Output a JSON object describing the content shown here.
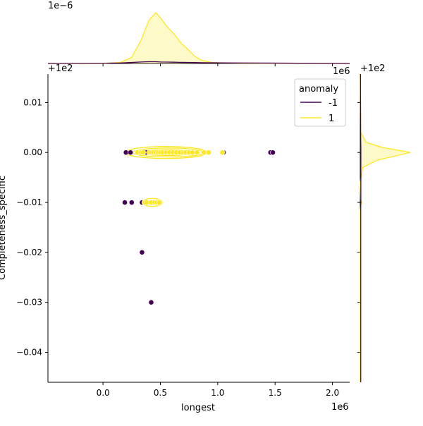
{
  "chart_data": {
    "type": "scatter",
    "subtype": "jointplot-kde",
    "xlabel": "longest",
    "ylabel": "Completeness_specific",
    "x_scale_label": "1e6",
    "y_offset_label": "+1e2",
    "top_marginal_scale_label": "1e−6",
    "top_marginal_top_right_label": "1e6",
    "right_marginal_offset_label": "+1e2",
    "xlim": [
      -0.48,
      2.15
    ],
    "ylim": [
      -0.046,
      0.0157
    ],
    "x_ticks": [
      0.0,
      0.5,
      1.0,
      1.5,
      2.0
    ],
    "x_tick_labels": [
      "0.0",
      "0.5",
      "1.0",
      "1.5",
      "2.0"
    ],
    "y_ticks": [
      0.01,
      0.0,
      -0.01,
      -0.02,
      -0.03,
      -0.04
    ],
    "y_tick_labels": [
      "0.01",
      "0.00",
      "−0.01",
      "−0.02",
      "−0.03",
      "−0.04"
    ],
    "grid": false,
    "legend": {
      "title": "anomaly",
      "placement": "top-right"
    },
    "series": [
      {
        "name": "-1",
        "color": "#440154",
        "points": [
          [
            0.2,
            0.0
          ],
          [
            0.24,
            0.0
          ],
          [
            0.38,
            0.0
          ],
          [
            1.05,
            0.0
          ],
          [
            1.46,
            0.0
          ],
          [
            1.48,
            0.0
          ],
          [
            0.19,
            -0.01
          ],
          [
            0.25,
            -0.01
          ],
          [
            0.34,
            -0.01
          ],
          [
            0.34,
            -0.02
          ],
          [
            0.42,
            -0.03
          ]
        ]
      },
      {
        "name": "1",
        "color": "#fde725",
        "points": [
          [
            0.3,
            0.0
          ],
          [
            0.33,
            0.0
          ],
          [
            0.35,
            0.0
          ],
          [
            0.4,
            0.0
          ],
          [
            0.42,
            0.0
          ],
          [
            0.44,
            0.0
          ],
          [
            0.46,
            0.0
          ],
          [
            0.48,
            0.0
          ],
          [
            0.5,
            0.0
          ],
          [
            0.52,
            0.0
          ],
          [
            0.55,
            0.0
          ],
          [
            0.58,
            0.0
          ],
          [
            0.61,
            0.0
          ],
          [
            0.64,
            0.0
          ],
          [
            0.67,
            0.0
          ],
          [
            0.7,
            0.0
          ],
          [
            0.72,
            0.0
          ],
          [
            0.75,
            0.0
          ],
          [
            0.78,
            0.0
          ],
          [
            0.82,
            0.0
          ],
          [
            0.88,
            0.0
          ],
          [
            0.92,
            0.0
          ],
          [
            1.04,
            0.0
          ],
          [
            0.36,
            -0.01
          ],
          [
            0.38,
            -0.01
          ],
          [
            0.42,
            -0.01
          ],
          [
            0.45,
            -0.01
          ],
          [
            0.47,
            -0.01
          ],
          [
            0.49,
            -0.01
          ]
        ]
      }
    ],
    "kde_contours_yellow": [
      {
        "cx": 0.55,
        "cy": 0.0,
        "rx": 0.36,
        "ry": 0.0012
      },
      {
        "cx": 0.57,
        "cy": 0.0,
        "rx": 0.31,
        "ry": 0.0009
      },
      {
        "cx": 0.55,
        "cy": 0.0,
        "rx": 0.24,
        "ry": 0.0006
      },
      {
        "cx": 0.52,
        "cy": 0.0,
        "rx": 0.17,
        "ry": 0.0004
      },
      {
        "cx": 0.43,
        "cy": -0.01,
        "rx": 0.085,
        "ry": 0.0008
      },
      {
        "cx": 0.43,
        "cy": -0.01,
        "rx": 0.05,
        "ry": 0.0004
      }
    ],
    "top_marginal": {
      "x": [
        -0.48,
        0.0,
        0.15,
        0.25,
        0.33,
        0.4,
        0.46,
        0.5,
        0.56,
        0.62,
        0.68,
        0.74,
        0.8,
        0.86,
        0.95,
        1.05,
        1.2,
        1.4,
        2.15
      ],
      "density_yellow": [
        0,
        0,
        0.02,
        0.12,
        0.45,
        0.85,
        1.0,
        0.9,
        0.72,
        0.58,
        0.4,
        0.28,
        0.14,
        0.06,
        0.02,
        0.01,
        0.005,
        0.002,
        0
      ],
      "density_purple": [
        0,
        0.005,
        0.01,
        0.02,
        0.03,
        0.035,
        0.035,
        0.03,
        0.028,
        0.025,
        0.022,
        0.02,
        0.018,
        0.016,
        0.014,
        0.012,
        0.01,
        0.008,
        0
      ]
    },
    "right_marginal": {
      "y": [
        -0.046,
        -0.012,
        -0.0105,
        -0.01,
        -0.0095,
        -0.006,
        -0.003,
        -0.0015,
        0.0,
        0.001,
        0.002,
        0.004,
        0.0157
      ],
      "density_yellow": [
        0,
        0,
        0.01,
        0.03,
        0.01,
        0,
        0.05,
        0.35,
        1.0,
        0.45,
        0.12,
        0.01,
        0
      ],
      "density_purple": [
        0.01,
        0.01,
        0.01,
        0.012,
        0.012,
        0.012,
        0.012,
        0.012,
        0.012,
        0.012,
        0.01,
        0.008,
        0.005
      ]
    }
  }
}
